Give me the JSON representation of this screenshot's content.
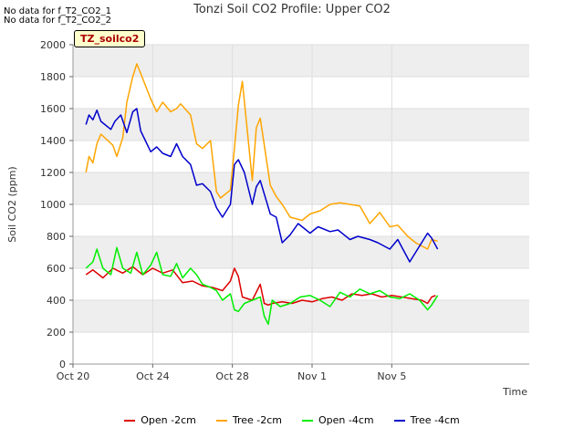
{
  "notes": [
    "No data for f_T2_CO2_1",
    "No data for f_T2_CO2_2"
  ],
  "title": "Tonzi Soil CO2 Profile: Upper CO2",
  "badge": "TZ_soilco2",
  "legend_items": [
    {
      "label": "Open -2cm",
      "color": "#dd0000"
    },
    {
      "label": "Tree -2cm",
      "color": "#ffa500"
    },
    {
      "label": "Open -4cm",
      "color": "#00ee00"
    },
    {
      "label": "Tree -4cm",
      "color": "#0000cc"
    }
  ],
  "chart_data": {
    "type": "line",
    "title": "Tonzi Soil CO2 Profile: Upper CO2",
    "xlabel": "Time",
    "ylabel": "Soil CO2 (ppm)",
    "ylim": [
      0,
      2000
    ],
    "yticks": [
      0,
      200,
      400,
      600,
      800,
      1000,
      1200,
      1400,
      1600,
      1800,
      2000
    ],
    "xlim": [
      0,
      22.9
    ],
    "x_unit": "days from Oct 20",
    "xticks": [
      {
        "value": 0,
        "label": "Oct 20"
      },
      {
        "value": 4,
        "label": "Oct 24"
      },
      {
        "value": 8,
        "label": "Oct 28"
      },
      {
        "value": 12,
        "label": "Nov 1"
      },
      {
        "value": 16,
        "label": "Nov 5"
      }
    ],
    "grid": "alternating horizontal bands",
    "series": [
      {
        "name": "Open -2cm",
        "color": "#dd0000",
        "x": [
          0.65,
          1.0,
          1.5,
          2.0,
          2.5,
          3.0,
          3.5,
          4.0,
          4.5,
          5.0,
          5.5,
          6.0,
          6.5,
          7.0,
          7.5,
          7.9,
          8.1,
          8.3,
          8.5,
          9.0,
          9.4,
          9.6,
          9.8,
          10.0,
          10.5,
          11.0,
          11.5,
          12.0,
          12.5,
          13.0,
          13.5,
          14.0,
          14.5,
          15.0,
          15.5,
          16.0,
          16.5,
          17.0,
          17.5,
          17.8,
          18.0,
          18.2
        ],
        "y": [
          560,
          590,
          540,
          600,
          570,
          610,
          560,
          600,
          570,
          590,
          510,
          520,
          490,
          480,
          460,
          520,
          600,
          550,
          420,
          400,
          500,
          380,
          370,
          380,
          390,
          380,
          400,
          390,
          410,
          420,
          400,
          440,
          430,
          440,
          420,
          430,
          420,
          410,
          400,
          380,
          420,
          430
        ]
      },
      {
        "name": "Tree -2cm",
        "color": "#ffa500",
        "x": [
          0.65,
          0.8,
          1.0,
          1.2,
          1.4,
          2.0,
          2.2,
          2.5,
          2.7,
          3.0,
          3.2,
          3.4,
          3.9,
          4.2,
          4.5,
          4.9,
          5.2,
          5.4,
          5.9,
          6.2,
          6.5,
          6.9,
          7.2,
          7.4,
          7.9,
          8.1,
          8.3,
          8.5,
          9.0,
          9.2,
          9.4,
          9.9,
          10.2,
          10.5,
          10.9,
          11.5,
          11.9,
          12.4,
          12.9,
          13.4,
          13.9,
          14.4,
          14.9,
          15.4,
          15.9,
          16.3,
          16.8,
          17.2,
          17.8,
          18.0,
          18.3
        ],
        "y": [
          1200,
          1300,
          1260,
          1380,
          1440,
          1370,
          1300,
          1420,
          1640,
          1800,
          1880,
          1820,
          1660,
          1580,
          1640,
          1580,
          1600,
          1630,
          1560,
          1380,
          1350,
          1400,
          1080,
          1040,
          1090,
          1350,
          1620,
          1770,
          1150,
          1480,
          1540,
          1120,
          1050,
          1000,
          920,
          900,
          940,
          960,
          1000,
          1010,
          1000,
          990,
          880,
          950,
          860,
          870,
          800,
          760,
          720,
          780,
          770
        ]
      },
      {
        "name": "Open -4cm",
        "color": "#00ee00",
        "x": [
          0.65,
          1.0,
          1.2,
          1.5,
          1.9,
          2.2,
          2.5,
          2.9,
          3.2,
          3.5,
          3.9,
          4.2,
          4.5,
          4.9,
          5.2,
          5.5,
          5.9,
          6.2,
          6.5,
          6.9,
          7.2,
          7.5,
          7.9,
          8.1,
          8.3,
          8.6,
          9.0,
          9.4,
          9.6,
          9.8,
          10.0,
          10.4,
          10.9,
          11.4,
          11.9,
          12.4,
          12.9,
          13.4,
          13.9,
          14.4,
          14.9,
          15.4,
          15.9,
          16.4,
          16.9,
          17.4,
          17.8,
          18.0,
          18.3
        ],
        "y": [
          600,
          640,
          720,
          600,
          560,
          730,
          600,
          570,
          700,
          560,
          620,
          700,
          560,
          550,
          630,
          540,
          600,
          560,
          500,
          480,
          460,
          400,
          440,
          340,
          330,
          380,
          400,
          420,
          300,
          250,
          400,
          360,
          380,
          420,
          430,
          400,
          360,
          450,
          420,
          470,
          440,
          460,
          420,
          410,
          440,
          400,
          340,
          370,
          430
        ]
      },
      {
        "name": "Tree -4cm",
        "color": "#0000cc",
        "x": [
          0.65,
          0.8,
          1.0,
          1.2,
          1.4,
          1.9,
          2.1,
          2.4,
          2.7,
          3.0,
          3.2,
          3.4,
          3.9,
          4.2,
          4.5,
          4.9,
          5.2,
          5.5,
          5.9,
          6.2,
          6.5,
          6.9,
          7.2,
          7.5,
          7.9,
          8.1,
          8.3,
          8.6,
          9.0,
          9.2,
          9.4,
          9.9,
          10.2,
          10.5,
          10.9,
          11.3,
          11.9,
          12.3,
          12.9,
          13.3,
          13.9,
          14.3,
          14.9,
          15.3,
          15.9,
          16.3,
          16.9,
          17.2,
          17.8,
          18.0,
          18.3
        ],
        "y": [
          1500,
          1560,
          1530,
          1590,
          1520,
          1470,
          1520,
          1560,
          1450,
          1580,
          1600,
          1460,
          1330,
          1360,
          1320,
          1300,
          1380,
          1300,
          1250,
          1120,
          1130,
          1080,
          980,
          920,
          1000,
          1250,
          1280,
          1200,
          1000,
          1110,
          1150,
          940,
          920,
          760,
          810,
          880,
          820,
          860,
          830,
          840,
          780,
          800,
          780,
          760,
          720,
          780,
          640,
          700,
          820,
          790,
          720
        ]
      }
    ]
  }
}
